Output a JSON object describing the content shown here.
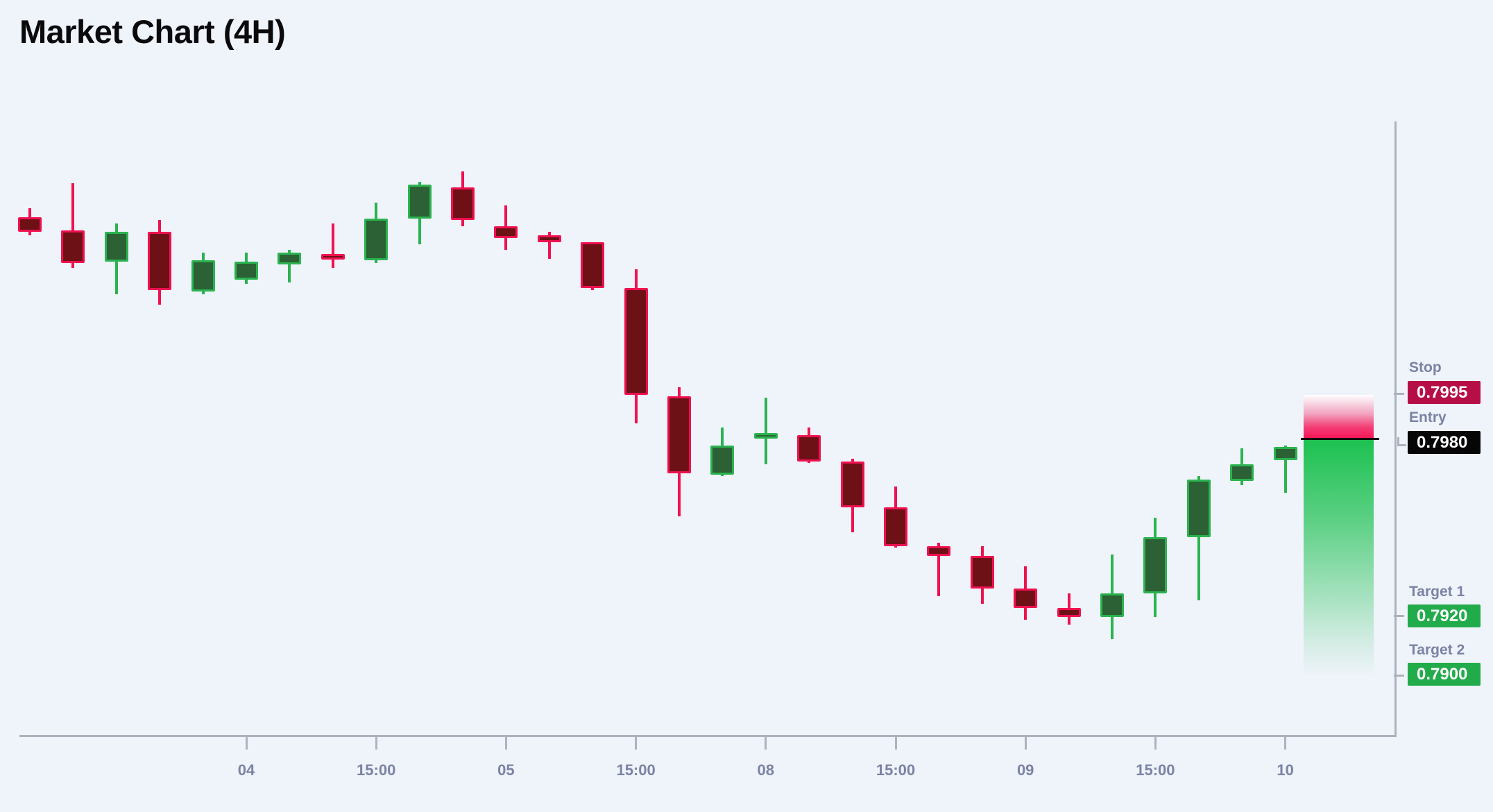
{
  "title": "Market Chart (4H)",
  "colors": {
    "background": "#eff3fa",
    "title_text": "#0a0a0c",
    "label_text": "#7b83a4",
    "axis": "#aeb2bd",
    "bear_border": "#f01150",
    "bear_body": "#6d1116",
    "bull_border": "#2bb350",
    "bull_body": "#2b6134",
    "stop_badge": "#b60f48",
    "entry_badge": "#060607",
    "target_badge": "#22ab4b",
    "entry_line": "#0c0c0c",
    "risk_zone": "#f41254",
    "reward_zone": "#1dc151"
  },
  "annotations": {
    "stop": {
      "label": "Stop",
      "value": "0.7995"
    },
    "entry": {
      "label": "Entry",
      "value": "0.7980"
    },
    "target1": {
      "label": "Target 1",
      "value": "0.7920"
    },
    "target2": {
      "label": "Target 2",
      "value": "0.7900"
    }
  },
  "chart_data": {
    "type": "candlestick",
    "title": "Market Chart (4H)",
    "timeframe": "4H",
    "grid": false,
    "legend": false,
    "ylim": [
      0.788,
      0.809
    ],
    "levels": {
      "stop": 0.7995,
      "entry": 0.798,
      "target1": 0.792,
      "target2": 0.79
    },
    "zones": {
      "risk": {
        "from": 0.798,
        "to": 0.7995
      },
      "reward": {
        "from": 0.79,
        "to": 0.798
      }
    },
    "x_ticks": [
      {
        "candle_index": 5,
        "label": "04"
      },
      {
        "candle_index": 8,
        "label": "15:00"
      },
      {
        "candle_index": 11,
        "label": "05"
      },
      {
        "candle_index": 14,
        "label": "15:00"
      },
      {
        "candle_index": 17,
        "label": "08"
      },
      {
        "candle_index": 20,
        "label": "15:00"
      },
      {
        "candle_index": 23,
        "label": "09"
      },
      {
        "candle_index": 26,
        "label": "15:00"
      },
      {
        "candle_index": 29,
        "label": "10"
      }
    ],
    "candles": [
      {
        "o": 0.8055,
        "h": 0.8058,
        "l": 0.8049,
        "c": 0.805,
        "dir": "bear"
      },
      {
        "o": 0.80505,
        "h": 0.80665,
        "l": 0.8038,
        "c": 0.80395,
        "dir": "bear"
      },
      {
        "o": 0.804,
        "h": 0.8053,
        "l": 0.8029,
        "c": 0.805,
        "dir": "bull"
      },
      {
        "o": 0.805,
        "h": 0.8054,
        "l": 0.80255,
        "c": 0.80305,
        "dir": "bear"
      },
      {
        "o": 0.803,
        "h": 0.8043,
        "l": 0.8029,
        "c": 0.80405,
        "dir": "bull"
      },
      {
        "o": 0.8034,
        "h": 0.8043,
        "l": 0.80325,
        "c": 0.804,
        "dir": "bull"
      },
      {
        "o": 0.8039,
        "h": 0.8044,
        "l": 0.8033,
        "c": 0.8043,
        "dir": "bull"
      },
      {
        "o": 0.80425,
        "h": 0.8053,
        "l": 0.8038,
        "c": 0.8042,
        "dir": "bear"
      },
      {
        "o": 0.80405,
        "h": 0.806,
        "l": 0.80395,
        "c": 0.80545,
        "dir": "bull"
      },
      {
        "o": 0.80545,
        "h": 0.8067,
        "l": 0.8046,
        "c": 0.8066,
        "dir": "bull"
      },
      {
        "o": 0.8065,
        "h": 0.80705,
        "l": 0.8052,
        "c": 0.8054,
        "dir": "bear"
      },
      {
        "o": 0.8052,
        "h": 0.8059,
        "l": 0.8044,
        "c": 0.8048,
        "dir": "bear"
      },
      {
        "o": 0.8049,
        "h": 0.805,
        "l": 0.8041,
        "c": 0.80465,
        "dir": "bear"
      },
      {
        "o": 0.80465,
        "h": 0.80465,
        "l": 0.80305,
        "c": 0.8031,
        "dir": "bear"
      },
      {
        "o": 0.8031,
        "h": 0.80375,
        "l": 0.79855,
        "c": 0.7995,
        "dir": "bear"
      },
      {
        "o": 0.79945,
        "h": 0.79975,
        "l": 0.7954,
        "c": 0.79685,
        "dir": "bear"
      },
      {
        "o": 0.7968,
        "h": 0.7984,
        "l": 0.79675,
        "c": 0.7978,
        "dir": "bull"
      },
      {
        "o": 0.7981,
        "h": 0.7994,
        "l": 0.79715,
        "c": 0.7982,
        "dir": "bull"
      },
      {
        "o": 0.79815,
        "h": 0.7984,
        "l": 0.7972,
        "c": 0.79725,
        "dir": "bear"
      },
      {
        "o": 0.79725,
        "h": 0.79735,
        "l": 0.79485,
        "c": 0.7957,
        "dir": "bear"
      },
      {
        "o": 0.7957,
        "h": 0.7964,
        "l": 0.79435,
        "c": 0.7944,
        "dir": "bear"
      },
      {
        "o": 0.7944,
        "h": 0.7945,
        "l": 0.7927,
        "c": 0.79405,
        "dir": "bear"
      },
      {
        "o": 0.79405,
        "h": 0.7944,
        "l": 0.79245,
        "c": 0.79295,
        "dir": "bear"
      },
      {
        "o": 0.79295,
        "h": 0.7937,
        "l": 0.7919,
        "c": 0.7923,
        "dir": "bear"
      },
      {
        "o": 0.7923,
        "h": 0.7928,
        "l": 0.79175,
        "c": 0.792,
        "dir": "bear"
      },
      {
        "o": 0.792,
        "h": 0.7941,
        "l": 0.79125,
        "c": 0.7928,
        "dir": "bull"
      },
      {
        "o": 0.7928,
        "h": 0.79535,
        "l": 0.792,
        "c": 0.7947,
        "dir": "bull"
      },
      {
        "o": 0.7947,
        "h": 0.79675,
        "l": 0.79255,
        "c": 0.79665,
        "dir": "bull"
      },
      {
        "o": 0.7966,
        "h": 0.7977,
        "l": 0.79645,
        "c": 0.79715,
        "dir": "bull"
      },
      {
        "o": 0.7973,
        "h": 0.7978,
        "l": 0.7962,
        "c": 0.79775,
        "dir": "bull"
      }
    ]
  }
}
